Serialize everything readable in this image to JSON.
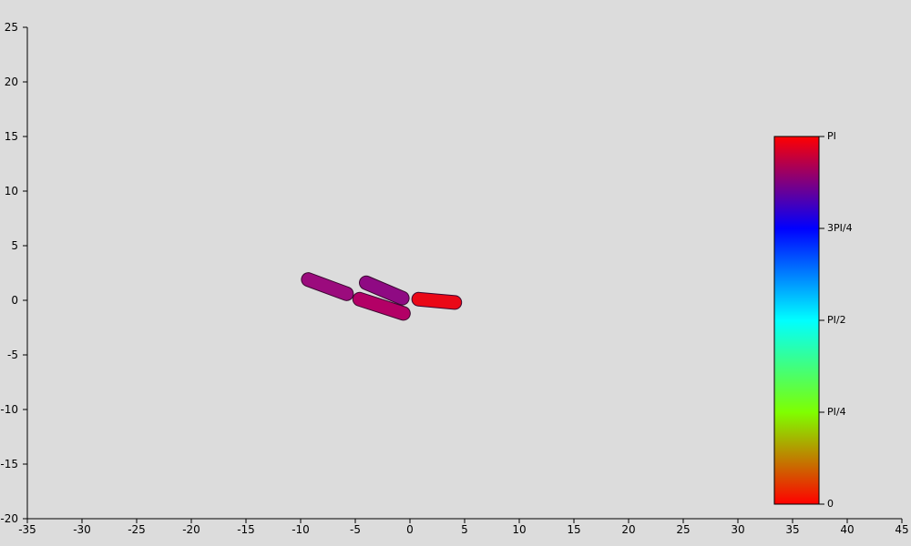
{
  "chart_data": {
    "type": "scatter",
    "xlim": [
      -35,
      45
    ],
    "ylim": [
      -20,
      25
    ],
    "x_ticks": [
      -35,
      -30,
      -25,
      -20,
      -15,
      -10,
      -5,
      0,
      5,
      10,
      15,
      20,
      25,
      30,
      35,
      40,
      45
    ],
    "y_ticks": [
      25,
      20,
      15,
      10,
      5,
      0,
      -5,
      -10,
      -15,
      -20
    ],
    "grid": false,
    "colorbar": {
      "placement": "right",
      "min_label": "0",
      "ticks": [
        {
          "label": "PI",
          "value": 3.14159
        },
        {
          "label": "3PI/4",
          "value": 2.35619
        },
        {
          "label": "PI/2",
          "value": 1.5708
        },
        {
          "label": "PI/4",
          "value": 0.7854
        },
        {
          "label": "0",
          "value": 0
        }
      ],
      "gradient": [
        {
          "value": 0,
          "color": "#ff0000"
        },
        {
          "value": 0.7854,
          "color": "#7fff00"
        },
        {
          "value": 1.5708,
          "color": "#00ffff"
        },
        {
          "value": 2.35619,
          "color": "#0000ff"
        },
        {
          "value": 2.75,
          "color": "#800080"
        },
        {
          "value": 3.14159,
          "color": "#ff0000"
        }
      ]
    },
    "cells": [
      {
        "x1": -9.3,
        "y1": 1.9,
        "x2": -5.8,
        "y2": 0.6,
        "angle": 2.9,
        "color": "#9b0b7d"
      },
      {
        "x1": -4.0,
        "y1": 1.6,
        "x2": -0.7,
        "y2": 0.2,
        "angle": 2.85,
        "color": "#8f0a83"
      },
      {
        "x1": -4.6,
        "y1": 0.1,
        "x2": -0.6,
        "y2": -1.2,
        "angle": 2.95,
        "color": "#b30066"
      },
      {
        "x1": 0.8,
        "y1": 0.1,
        "x2": 4.1,
        "y2": -0.2,
        "angle": 3.12,
        "color": "#ea0817"
      }
    ]
  }
}
